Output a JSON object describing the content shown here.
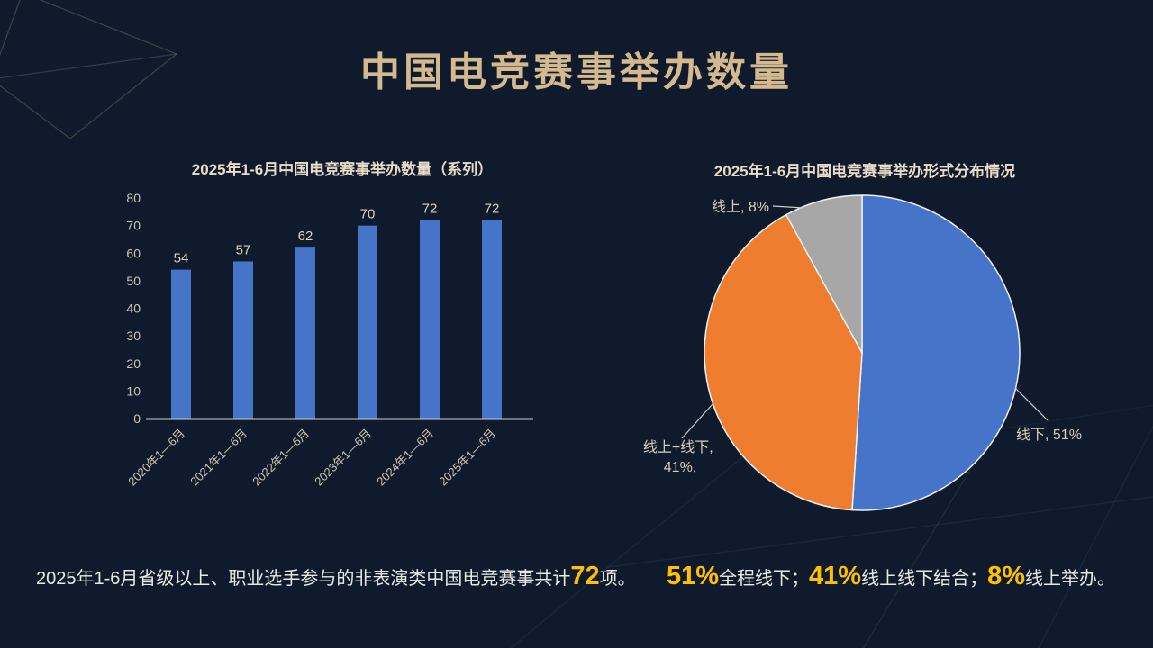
{
  "slide": {
    "title": "中国电竞赛事举办数量"
  },
  "colors": {
    "background": "#0f1b2c",
    "title_gold": "#d5b98e",
    "chart_title_cream": "#e8dcc6",
    "axis_text": "#cfc5b0",
    "bar_blue": "#4574c9",
    "pie_blue": "#4574c9",
    "pie_orange": "#ee7d2f",
    "pie_gray": "#a7a7a7",
    "axis_line": "#c9cdd3",
    "highlight_yellow": "#ffc000",
    "footer_text": "#eae8e4"
  },
  "chart_data": [
    {
      "type": "bar",
      "title": "2025年1-6月中国电竞赛事举办数量（系列）",
      "categories": [
        "2020年1—6月",
        "2021年1—6月",
        "2022年1—6月",
        "2023年1—6月",
        "2024年1—6月",
        "2025年1—6月"
      ],
      "values": [
        54,
        57,
        62,
        70,
        72,
        72
      ],
      "xlabel": "",
      "ylabel": "",
      "ylim": [
        0,
        80
      ],
      "ytick_step": 10,
      "grid": false,
      "legend": "none",
      "bar_color": "#4574c9",
      "value_labels": true
    },
    {
      "type": "pie",
      "title": "2025年1-6月中国电竞赛事举办形式分布情况",
      "start_angle": "12-oclock",
      "direction": "clockwise",
      "border_color": "#f0f1f3",
      "slices": [
        {
          "name": "线下",
          "value": 51,
          "color": "#4574c9",
          "label": "线下, 51%"
        },
        {
          "name": "线上+线下",
          "value": 41,
          "color": "#ee7d2f",
          "label_lines": [
            "线上+线下,",
            "41%,"
          ]
        },
        {
          "name": "线上",
          "value": 8,
          "color": "#a7a7a7",
          "label": "线上, 8%"
        }
      ]
    }
  ],
  "footer": {
    "left": {
      "prefix": "2025年1-6月省级以上、职业选手参与的非表演类中国电竞赛事共计",
      "highlight": "72",
      "suffix": "项。"
    },
    "right": {
      "parts": [
        {
          "highlight": "51%"
        },
        {
          "text": "全程线下；"
        },
        {
          "highlight": "41%"
        },
        {
          "text": "线上线下结合；"
        },
        {
          "highlight": "8%"
        },
        {
          "text": "线上举办。"
        }
      ]
    }
  }
}
